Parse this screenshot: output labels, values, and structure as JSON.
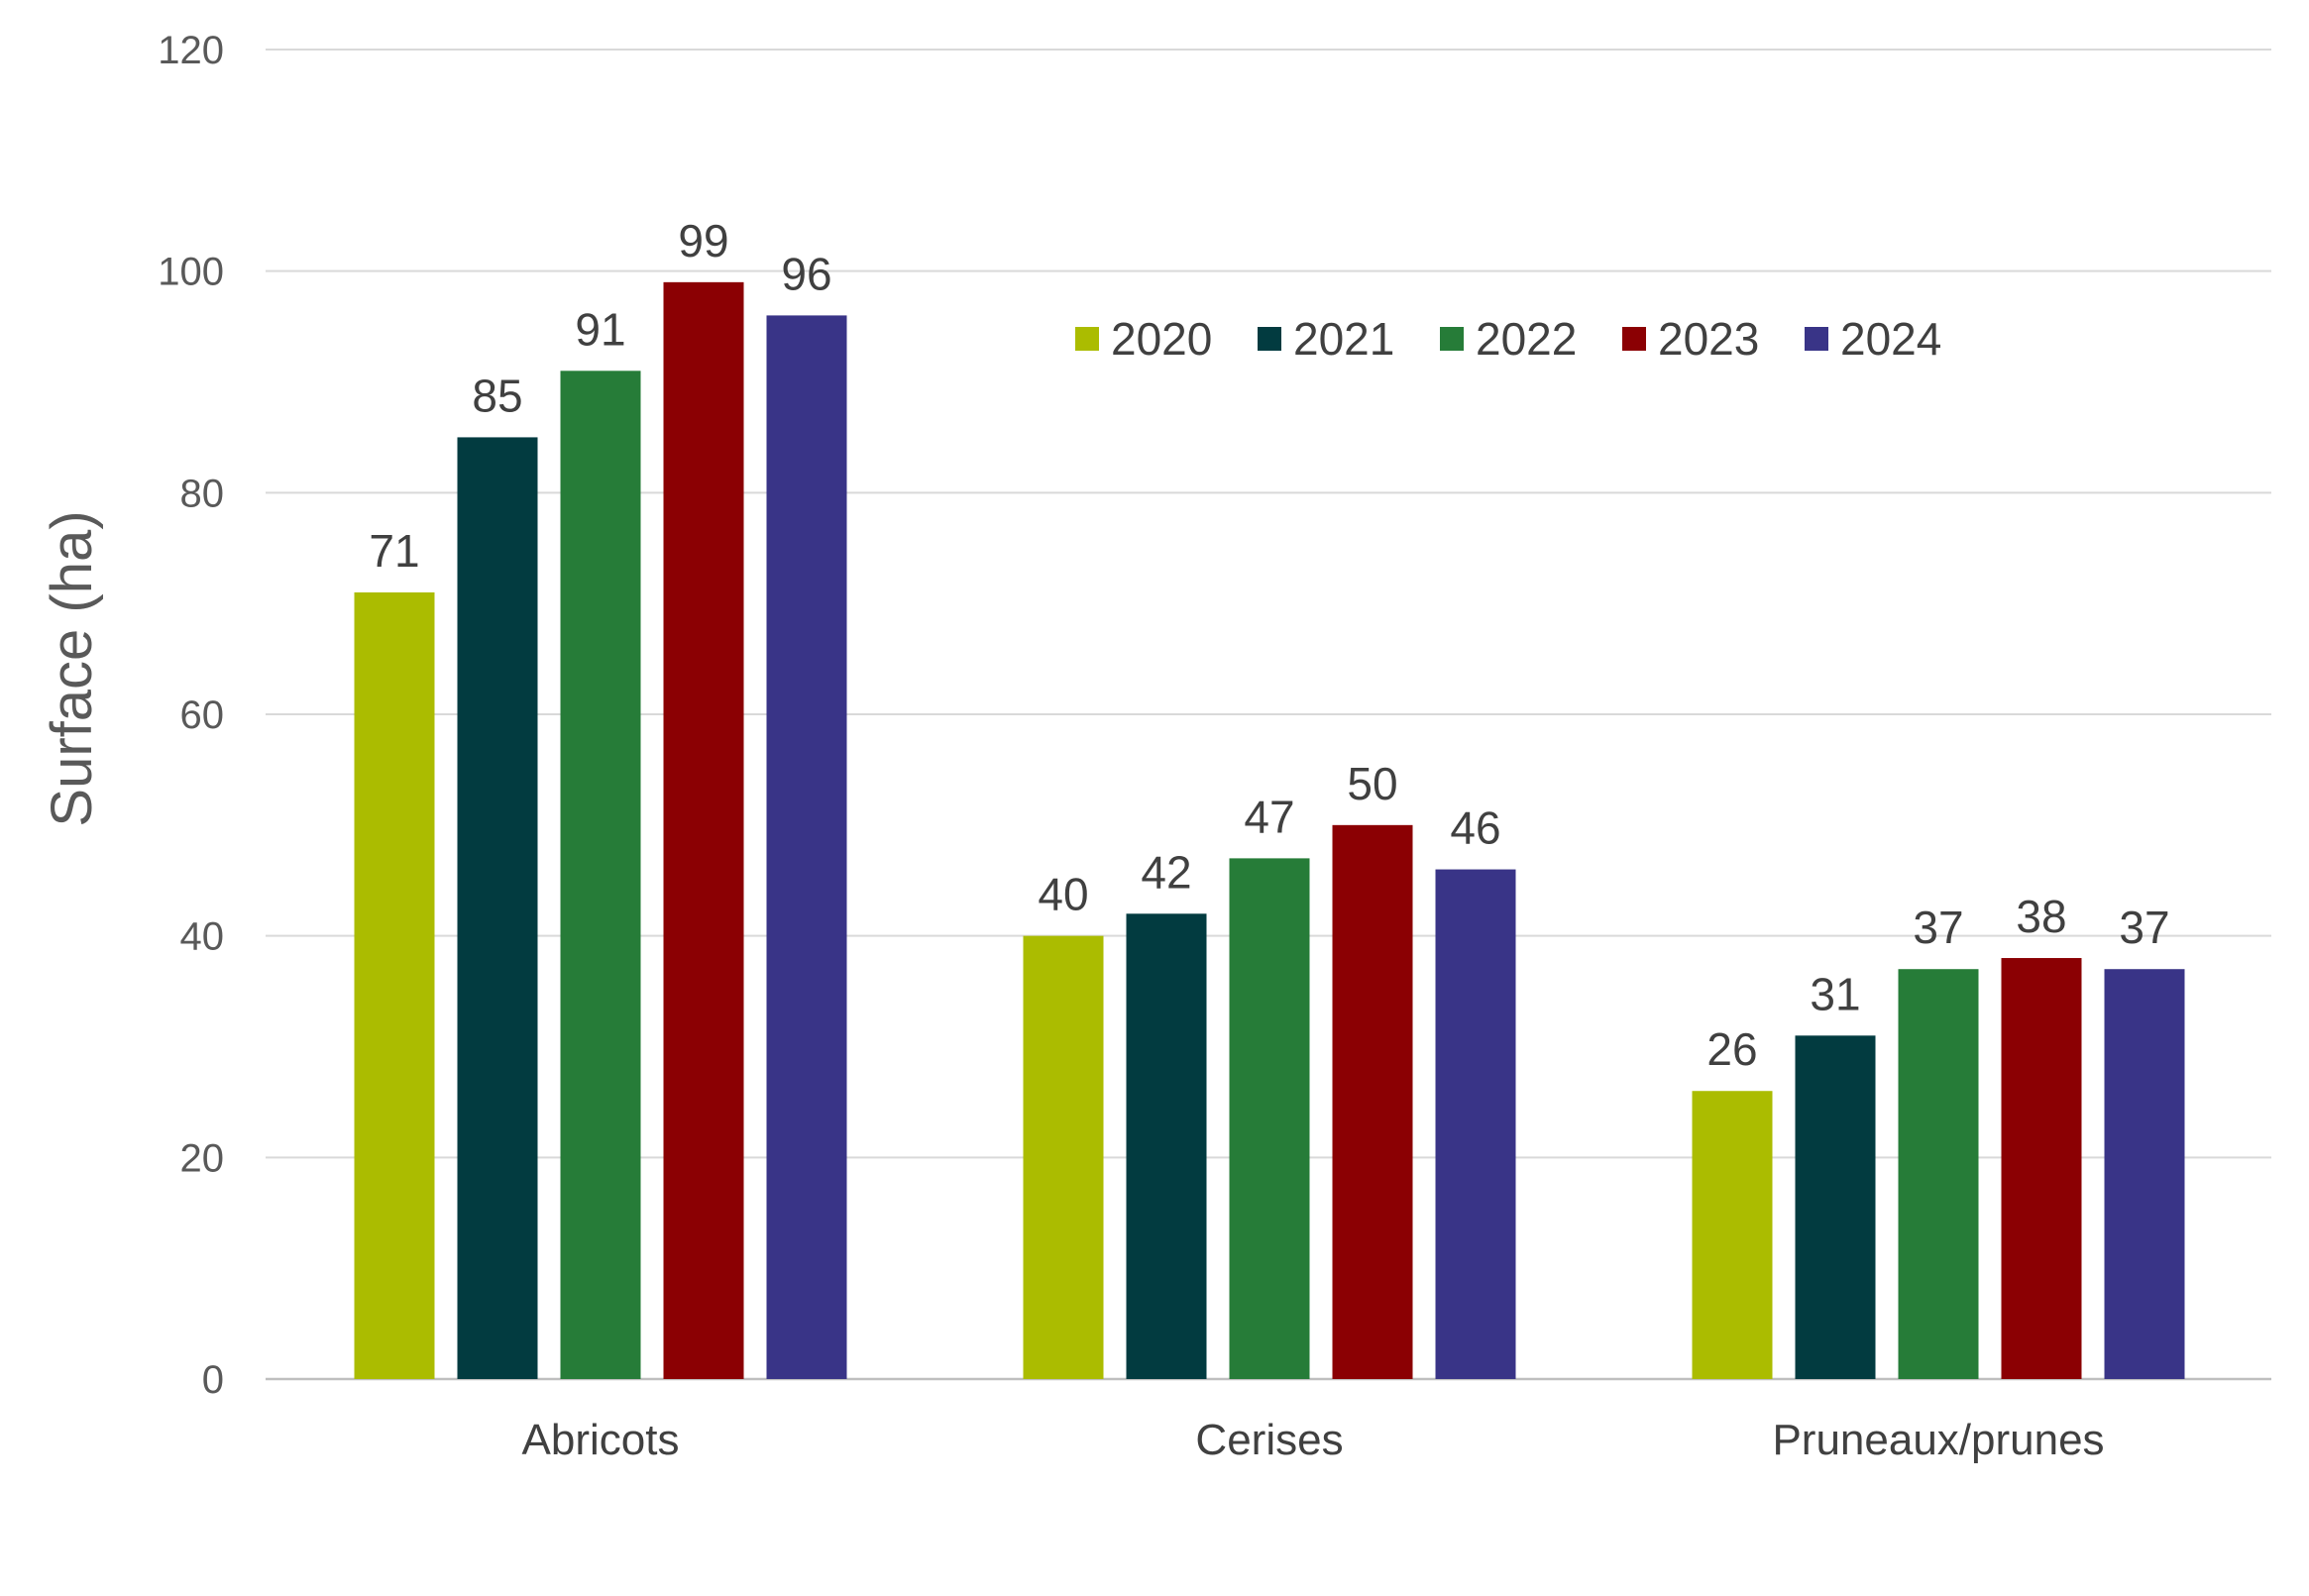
{
  "chart_data": {
    "type": "bar",
    "title": "",
    "xlabel": "",
    "ylabel": "Surface (ha)",
    "ylim": [
      0,
      120
    ],
    "yticks": [
      0,
      20,
      40,
      60,
      80,
      100,
      120
    ],
    "grid": true,
    "legend_position": "top-right",
    "categories": [
      "Abricots",
      "Cerises",
      "Pruneaux/prunes"
    ],
    "series": [
      {
        "name": "2020",
        "color": "#abbc00",
        "values": [
          71,
          40,
          26
        ]
      },
      {
        "name": "2021",
        "color": "#023b40",
        "values": [
          85,
          42,
          31
        ]
      },
      {
        "name": "2022",
        "color": "#267c38",
        "values": [
          91,
          47,
          37
        ]
      },
      {
        "name": "2023",
        "color": "#8b0003",
        "values": [
          99,
          50,
          38
        ]
      },
      {
        "name": "2024",
        "color": "#393487",
        "values": [
          96,
          46,
          37
        ]
      }
    ]
  }
}
